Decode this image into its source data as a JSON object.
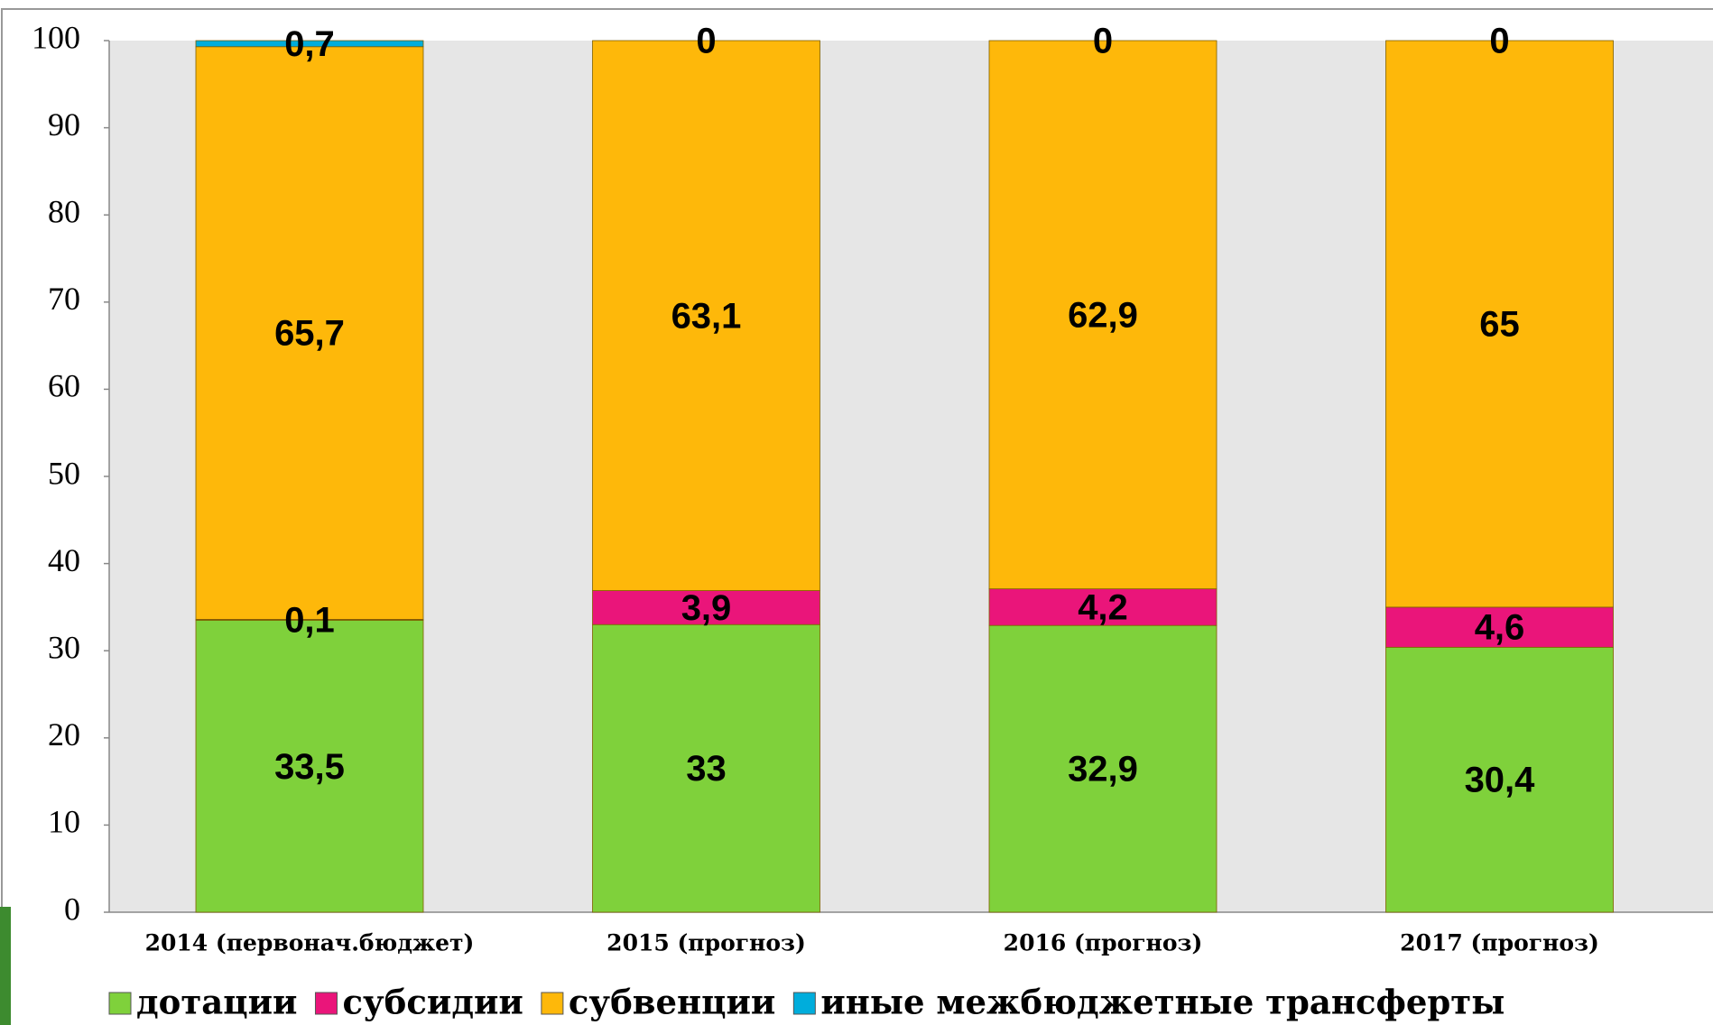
{
  "chart_data": {
    "type": "stacked_bar",
    "categories": [
      "2014 (первонач.бюджет)",
      "2015 (прогноз)",
      "2016 (прогноз)",
      "2017 (прогноз)"
    ],
    "series": [
      {
        "name": "дотации",
        "color": "#7fd13b",
        "values": [
          33.5,
          33,
          32.9,
          30.4
        ],
        "value_labels": [
          "33,5",
          "33",
          "32,9",
          "30,4"
        ]
      },
      {
        "name": "субсидии",
        "color": "#ea157a",
        "values": [
          0.1,
          3.9,
          4.2,
          4.6
        ],
        "value_labels": [
          "0,1",
          "3,9",
          "4,2",
          "4,6"
        ]
      },
      {
        "name": "субвенции",
        "color": "#feb80a",
        "values": [
          65.7,
          63.1,
          62.9,
          65
        ],
        "value_labels": [
          "65,7",
          "63,1",
          "62,9",
          "65"
        ]
      },
      {
        "name": "иные межбюджетные трансферты",
        "color": "#00addc",
        "values": [
          0.7,
          0,
          0,
          0
        ],
        "value_labels": [
          "0,7",
          "0",
          "0",
          "0"
        ]
      }
    ],
    "ylim": [
      0,
      100
    ],
    "yticks": [
      0,
      10,
      20,
      30,
      40,
      50,
      60,
      70,
      80,
      90,
      100
    ],
    "legend": "bottom"
  }
}
